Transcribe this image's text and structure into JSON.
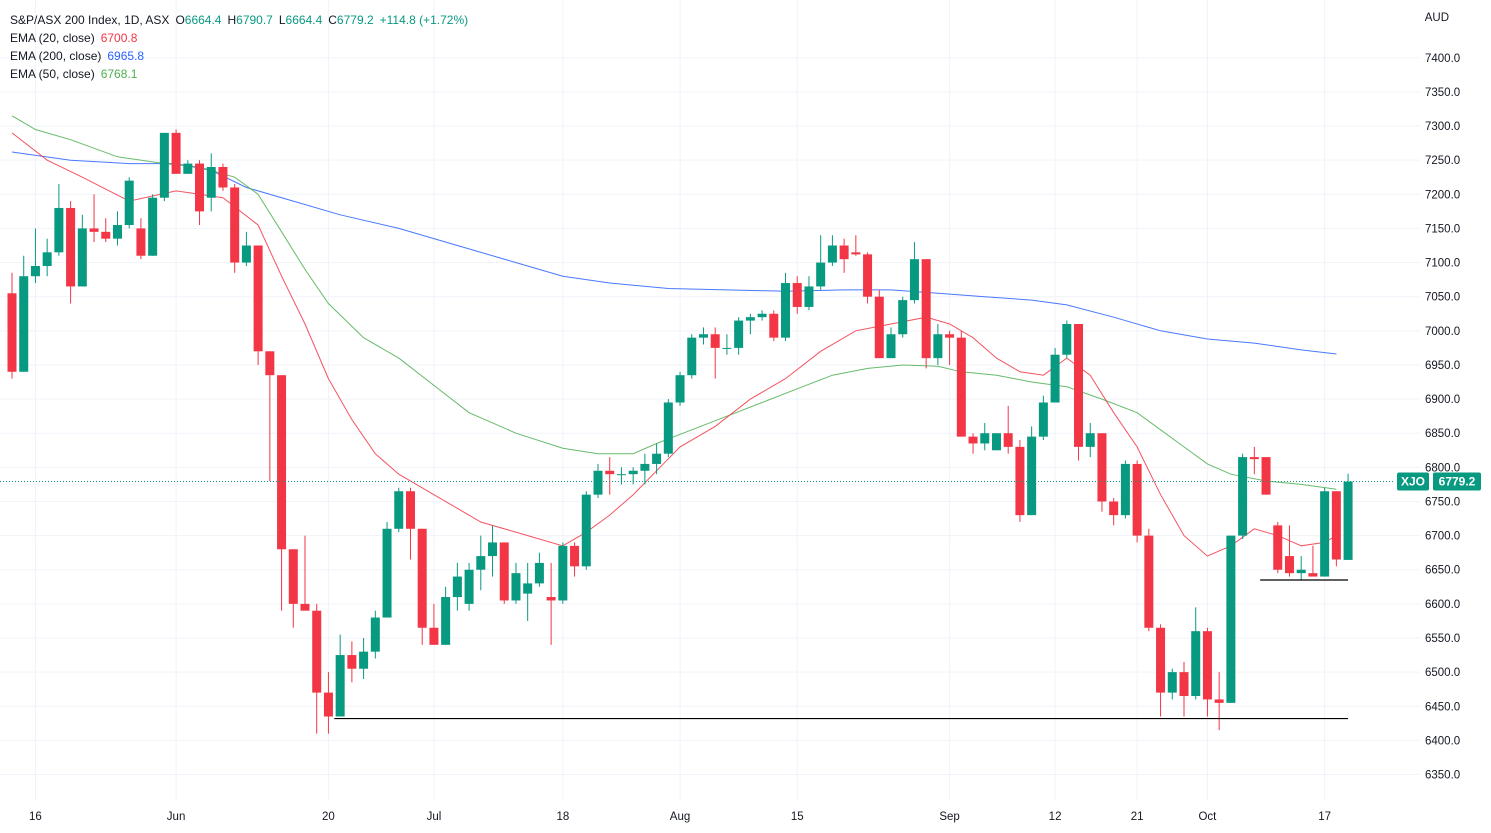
{
  "legend": {
    "symbol": "S&P/ASX 200 Index, 1D, ASX",
    "open_label": "O",
    "open": "6664.4",
    "high_label": "H",
    "high": "6790.7",
    "low_label": "L",
    "low": "6664.4",
    "close_label": "C",
    "close": "6779.2",
    "change": "+114.8 (+1.72%)",
    "ema20_label": "EMA (20, close)",
    "ema20_value": "6700.8",
    "ema200_label": "EMA (200, close)",
    "ema200_value": "6965.8",
    "ema50_label": "EMA (50, close)",
    "ema50_value": "6768.1"
  },
  "price_badge": {
    "ticker": "XJO",
    "value": "6779.2"
  },
  "colors": {
    "up": "#089981",
    "down": "#f23645",
    "ema20": "#f23645",
    "ema200": "#2962ff",
    "ema50": "#4caf50",
    "badge": "#089981"
  },
  "chart_data": {
    "type": "candlestick",
    "currency": "AUD",
    "ylim": [
      6320,
      7470
    ],
    "y_ticks": [
      7400,
      7350,
      7300,
      7250,
      7200,
      7150,
      7100,
      7050,
      7000,
      6950,
      6900,
      6850,
      6800,
      6750,
      6700,
      6650,
      6600,
      6550,
      6500,
      6450,
      6400,
      6350
    ],
    "x_tick_labels": [
      {
        "label": "16",
        "index": 2
      },
      {
        "label": "Jun",
        "index": 14
      },
      {
        "label": "20",
        "index": 27
      },
      {
        "label": "Jul",
        "index": 36
      },
      {
        "label": "18",
        "index": 47
      },
      {
        "label": "Aug",
        "index": 57
      },
      {
        "label": "15",
        "index": 67
      },
      {
        "label": "Sep",
        "index": 80
      },
      {
        "label": "12",
        "index": 89
      },
      {
        "label": "21",
        "index": 96
      },
      {
        "label": "Oct",
        "index": 102
      },
      {
        "label": "17",
        "index": 112
      }
    ],
    "candles": [
      [
        7055,
        7085,
        6930,
        6940
      ],
      [
        6940,
        7110,
        6940,
        7080
      ],
      [
        7080,
        7150,
        7070,
        7095
      ],
      [
        7095,
        7135,
        7080,
        7115
      ],
      [
        7115,
        7215,
        7110,
        7180
      ],
      [
        7180,
        7190,
        7040,
        7065
      ],
      [
        7065,
        7170,
        7065,
        7150
      ],
      [
        7150,
        7200,
        7130,
        7145
      ],
      [
        7145,
        7165,
        7130,
        7135
      ],
      [
        7135,
        7175,
        7125,
        7155
      ],
      [
        7155,
        7225,
        7150,
        7220
      ],
      [
        7150,
        7165,
        7105,
        7110
      ],
      [
        7110,
        7200,
        7110,
        7195
      ],
      [
        7195,
        7290,
        7190,
        7290
      ],
      [
        7290,
        7295,
        7230,
        7230
      ],
      [
        7230,
        7250,
        7230,
        7245
      ],
      [
        7245,
        7250,
        7155,
        7175
      ],
      [
        7195,
        7260,
        7175,
        7240
      ],
      [
        7240,
        7245,
        7205,
        7210
      ],
      [
        7210,
        7215,
        7085,
        7100
      ],
      [
        7100,
        7145,
        7095,
        7125
      ],
      [
        7125,
        7125,
        6950,
        6970
      ],
      [
        6970,
        6970,
        6780,
        6935
      ],
      [
        6935,
        6935,
        6590,
        6680
      ],
      [
        6680,
        6680,
        6565,
        6600
      ],
      [
        6600,
        6700,
        6595,
        6590
      ],
      [
        6590,
        6600,
        6410,
        6470
      ],
      [
        6470,
        6500,
        6410,
        6435
      ],
      [
        6435,
        6555,
        6435,
        6525
      ],
      [
        6525,
        6545,
        6485,
        6505
      ],
      [
        6505,
        6550,
        6490,
        6530
      ],
      [
        6530,
        6590,
        6520,
        6580
      ],
      [
        6580,
        6720,
        6580,
        6710
      ],
      [
        6710,
        6770,
        6705,
        6765
      ],
      [
        6765,
        6770,
        6665,
        6710
      ],
      [
        6710,
        6710,
        6540,
        6565
      ],
      [
        6565,
        6600,
        6540,
        6540
      ],
      [
        6540,
        6625,
        6540,
        6610
      ],
      [
        6610,
        6660,
        6590,
        6640
      ],
      [
        6600,
        6660,
        6590,
        6650
      ],
      [
        6650,
        6700,
        6620,
        6670
      ],
      [
        6670,
        6715,
        6640,
        6690
      ],
      [
        6690,
        6690,
        6600,
        6605
      ],
      [
        6605,
        6660,
        6600,
        6645
      ],
      [
        6615,
        6660,
        6575,
        6630
      ],
      [
        6630,
        6675,
        6625,
        6660
      ],
      [
        6610,
        6660,
        6540,
        6605
      ],
      [
        6605,
        6690,
        6600,
        6685
      ],
      [
        6685,
        6690,
        6640,
        6655
      ],
      [
        6655,
        6765,
        6650,
        6760
      ],
      [
        6760,
        6805,
        6755,
        6795
      ],
      [
        6795,
        6815,
        6760,
        6790
      ],
      [
        6790,
        6800,
        6775,
        6790
      ],
      [
        6790,
        6800,
        6775,
        6795
      ],
      [
        6795,
        6820,
        6775,
        6805
      ],
      [
        6805,
        6835,
        6790,
        6820
      ],
      [
        6820,
        6900,
        6815,
        6895
      ],
      [
        6895,
        6940,
        6890,
        6935
      ],
      [
        6935,
        6995,
        6930,
        6990
      ],
      [
        6990,
        7005,
        6980,
        6995
      ],
      [
        6995,
        7005,
        6930,
        6975
      ],
      [
        6975,
        6995,
        6965,
        6975
      ],
      [
        6975,
        7020,
        6965,
        7015
      ],
      [
        7015,
        7025,
        6995,
        7020
      ],
      [
        7020,
        7030,
        7015,
        7025
      ],
      [
        7025,
        7030,
        6985,
        6990
      ],
      [
        6990,
        7085,
        6985,
        7070
      ],
      [
        7070,
        7080,
        7025,
        7035
      ],
      [
        7035,
        7080,
        7030,
        7065
      ],
      [
        7065,
        7140,
        7060,
        7100
      ],
      [
        7100,
        7140,
        7095,
        7125
      ],
      [
        7125,
        7135,
        7085,
        7105
      ],
      [
        7115,
        7140,
        7110,
        7112
      ],
      [
        7112,
        7115,
        7040,
        7050
      ],
      [
        7050,
        7060,
        6960,
        6960
      ],
      [
        6960,
        7005,
        6960,
        6995
      ],
      [
        6995,
        7050,
        6990,
        7045
      ],
      [
        7045,
        7130,
        7040,
        7105
      ],
      [
        7105,
        7105,
        6945,
        6960
      ],
      [
        6960,
        7010,
        6950,
        6995
      ],
      [
        6995,
        7000,
        6950,
        6990
      ],
      [
        6990,
        7000,
        6845,
        6845
      ],
      [
        6845,
        6850,
        6820,
        6835
      ],
      [
        6835,
        6865,
        6825,
        6850
      ],
      [
        6825,
        6850,
        6825,
        6850
      ],
      [
        6850,
        6890,
        6820,
        6830
      ],
      [
        6830,
        6840,
        6720,
        6730
      ],
      [
        6730,
        6860,
        6730,
        6845
      ],
      [
        6845,
        6905,
        6840,
        6895
      ],
      [
        6895,
        6975,
        6895,
        6965
      ],
      [
        6965,
        7015,
        6960,
        7010
      ],
      [
        7010,
        7010,
        6810,
        6830
      ],
      [
        6830,
        6865,
        6815,
        6850
      ],
      [
        6850,
        6850,
        6735,
        6750
      ],
      [
        6750,
        6755,
        6715,
        6730
      ],
      [
        6730,
        6810,
        6725,
        6805
      ],
      [
        6805,
        6810,
        6690,
        6700
      ],
      [
        6700,
        6710,
        6560,
        6565
      ],
      [
        6565,
        6570,
        6435,
        6470
      ],
      [
        6470,
        6505,
        6460,
        6500
      ],
      [
        6500,
        6515,
        6435,
        6465
      ],
      [
        6465,
        6595,
        6460,
        6560
      ],
      [
        6560,
        6565,
        6435,
        6460
      ],
      [
        6460,
        6500,
        6415,
        6455
      ],
      [
        6455,
        6700,
        6455,
        6700
      ],
      [
        6700,
        6820,
        6695,
        6815
      ],
      [
        6815,
        6830,
        6790,
        6812
      ],
      [
        6815,
        6815,
        6760,
        6760
      ],
      [
        6715,
        6720,
        6645,
        6650
      ],
      [
        6670,
        6715,
        6640,
        6645
      ],
      [
        6645,
        6670,
        6635,
        6650
      ],
      [
        6645,
        6685,
        6640,
        6640
      ],
      [
        6640,
        6770,
        6640,
        6765
      ],
      [
        6765,
        6765,
        6655,
        6665
      ],
      [
        6664.4,
        6790.7,
        6664.4,
        6779.2
      ]
    ],
    "ema20": [
      [
        0,
        7290
      ],
      [
        3,
        7250
      ],
      [
        6,
        7225
      ],
      [
        10,
        7190
      ],
      [
        14,
        7205
      ],
      [
        16,
        7200
      ],
      [
        18,
        7195
      ],
      [
        21,
        7155
      ],
      [
        23,
        7080
      ],
      [
        25,
        7010
      ],
      [
        27,
        6930
      ],
      [
        29,
        6870
      ],
      [
        31,
        6820
      ],
      [
        33,
        6790
      ],
      [
        36,
        6760
      ],
      [
        40,
        6720
      ],
      [
        44,
        6700
      ],
      [
        47,
        6685
      ],
      [
        49,
        6705
      ],
      [
        51,
        6730
      ],
      [
        53,
        6760
      ],
      [
        55,
        6795
      ],
      [
        57,
        6830
      ],
      [
        60,
        6860
      ],
      [
        63,
        6900
      ],
      [
        66,
        6930
      ],
      [
        69,
        6970
      ],
      [
        72,
        7000
      ],
      [
        75,
        7010
      ],
      [
        78,
        7020
      ],
      [
        80,
        7010
      ],
      [
        82,
        6990
      ],
      [
        84,
        6960
      ],
      [
        86,
        6940
      ],
      [
        88,
        6935
      ],
      [
        90,
        6960
      ],
      [
        92,
        6935
      ],
      [
        94,
        6880
      ],
      [
        96,
        6830
      ],
      [
        98,
        6760
      ],
      [
        100,
        6700
      ],
      [
        102,
        6670
      ],
      [
        104,
        6685
      ],
      [
        106,
        6710
      ],
      [
        108,
        6700
      ],
      [
        110,
        6685
      ],
      [
        112,
        6690
      ],
      [
        113,
        6700
      ]
    ],
    "ema50": [
      [
        0,
        7315
      ],
      [
        2,
        7295
      ],
      [
        5,
        7280
      ],
      [
        9,
        7255
      ],
      [
        13,
        7245
      ],
      [
        16,
        7240
      ],
      [
        19,
        7225
      ],
      [
        21,
        7200
      ],
      [
        23,
        7145
      ],
      [
        25,
        7090
      ],
      [
        27,
        7040
      ],
      [
        30,
        6990
      ],
      [
        33,
        6960
      ],
      [
        36,
        6920
      ],
      [
        39,
        6880
      ],
      [
        43,
        6850
      ],
      [
        47,
        6828
      ],
      [
        50,
        6820
      ],
      [
        53,
        6820
      ],
      [
        55,
        6835
      ],
      [
        58,
        6855
      ],
      [
        61,
        6875
      ],
      [
        64,
        6895
      ],
      [
        67,
        6915
      ],
      [
        70,
        6935
      ],
      [
        73,
        6945
      ],
      [
        76,
        6950
      ],
      [
        79,
        6948
      ],
      [
        81,
        6940
      ],
      [
        84,
        6935
      ],
      [
        87,
        6925
      ],
      [
        90,
        6918
      ],
      [
        93,
        6900
      ],
      [
        96,
        6880
      ],
      [
        98,
        6855
      ],
      [
        100,
        6830
      ],
      [
        102,
        6805
      ],
      [
        104,
        6790
      ],
      [
        107,
        6780
      ],
      [
        110,
        6775
      ],
      [
        113,
        6768
      ]
    ],
    "ema200": [
      [
        0,
        7262
      ],
      [
        5,
        7250
      ],
      [
        10,
        7245
      ],
      [
        14,
        7245
      ],
      [
        17,
        7235
      ],
      [
        20,
        7210
      ],
      [
        24,
        7190
      ],
      [
        28,
        7170
      ],
      [
        33,
        7150
      ],
      [
        38,
        7125
      ],
      [
        43,
        7100
      ],
      [
        47,
        7080
      ],
      [
        51,
        7070
      ],
      [
        56,
        7062
      ],
      [
        61,
        7060
      ],
      [
        66,
        7058
      ],
      [
        71,
        7060
      ],
      [
        75,
        7060
      ],
      [
        79,
        7055
      ],
      [
        83,
        7050
      ],
      [
        87,
        7045
      ],
      [
        90,
        7038
      ],
      [
        94,
        7020
      ],
      [
        98,
        7000
      ],
      [
        102,
        6988
      ],
      [
        106,
        6982
      ],
      [
        110,
        6972
      ],
      [
        113,
        6966
      ]
    ],
    "support_lines": [
      {
        "price": 6432,
        "from_index": 27.5,
        "to_index": 114
      },
      {
        "price": 6635,
        "from_index": 106.5,
        "to_index": 114
      }
    ],
    "last_price_line": 6779.2
  }
}
